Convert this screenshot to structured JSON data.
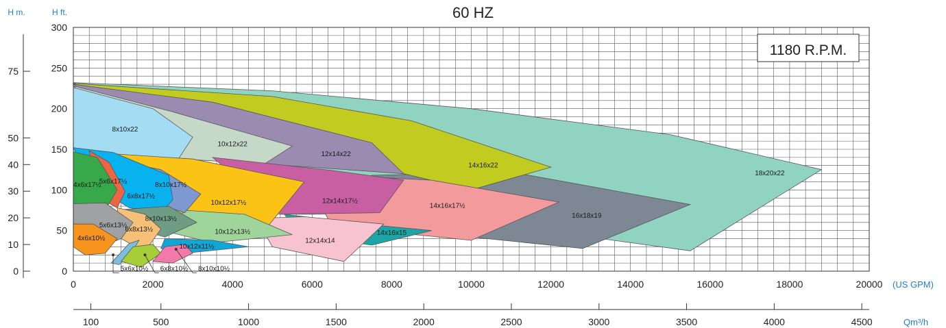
{
  "chart_data": {
    "type": "area",
    "title": "60 HZ",
    "speed_label": "1180 R.P.M.",
    "left_axis_m_label": "H m.",
    "left_axis_ft_label": "H ft.",
    "x_unit_gpm": "(US GPM)",
    "x_unit_m3h": "Qm³/h",
    "xlim_gpm": [
      0,
      20000
    ],
    "ylim_ft": [
      0,
      300
    ],
    "x_ticks_gpm": [
      "0",
      "2000",
      "4000",
      "6000",
      "8000",
      "10000",
      "12000",
      "14000",
      "16000",
      "18000",
      "20000"
    ],
    "y_ticks_ft": [
      "0",
      "50",
      "100",
      "150",
      "200",
      "250",
      "300"
    ],
    "m_ticks": [
      {
        "label": "0",
        "ft": 0
      },
      {
        "label": "10",
        "ft": 32.8
      },
      {
        "label": "20",
        "ft": 65.6
      },
      {
        "label": "30",
        "ft": 98.4
      },
      {
        "label": "40",
        "ft": 131.2
      },
      {
        "label": "50",
        "ft": 164
      },
      {
        "label": "75",
        "ft": 246
      }
    ],
    "m3h_ticks": [
      {
        "label": "100",
        "gpm": 440
      },
      {
        "label": "500",
        "gpm": 2201
      },
      {
        "label": "1000",
        "gpm": 4403
      },
      {
        "label": "1500",
        "gpm": 6604
      },
      {
        "label": "2000",
        "gpm": 8806
      },
      {
        "label": "2500",
        "gpm": 11007
      },
      {
        "label": "3000",
        "gpm": 13209
      },
      {
        "label": "3500",
        "gpm": 15410
      },
      {
        "label": "4000",
        "gpm": 17612
      },
      {
        "label": "4500",
        "gpm": 19813
      }
    ],
    "grid": true,
    "series": [
      {
        "name": "18x20x22",
        "color": "#8fd3c0",
        "lx": 17500,
        "ly": 120,
        "points": [
          [
            0,
            232
          ],
          [
            5000,
            222
          ],
          [
            10000,
            200
          ],
          [
            15000,
            168
          ],
          [
            18800,
            125
          ],
          [
            15500,
            25
          ],
          [
            10000,
            62
          ],
          [
            7000,
            92
          ]
        ]
      },
      {
        "name": "16x18x19",
        "color": "#7d8894",
        "lx": 12900,
        "ly": 68,
        "points": [
          [
            7500,
            118
          ],
          [
            11000,
            122
          ],
          [
            15500,
            82
          ],
          [
            12800,
            28
          ],
          [
            8000,
            52
          ]
        ]
      },
      {
        "name": "14x16x22",
        "color": "#c2cc20",
        "lx": 10300,
        "ly": 130,
        "points": [
          [
            0,
            231
          ],
          [
            5000,
            215
          ],
          [
            8500,
            185
          ],
          [
            12000,
            128
          ],
          [
            10000,
            100
          ],
          [
            8300,
            120
          ],
          [
            4000,
            150
          ]
        ]
      },
      {
        "name": "12x14x22",
        "color": "#9b8bb0",
        "lx": 6600,
        "ly": 144,
        "points": [
          [
            0,
            230
          ],
          [
            3500,
            208
          ],
          [
            7500,
            158
          ],
          [
            8300,
            120
          ],
          [
            4800,
            132
          ],
          [
            2000,
            158
          ]
        ]
      },
      {
        "name": "10x12x22",
        "color": "#c6d8c8",
        "lx": 4000,
        "ly": 156,
        "points": [
          [
            0,
            228
          ],
          [
            2500,
            196
          ],
          [
            5500,
            154
          ],
          [
            4800,
            132
          ],
          [
            2700,
            138
          ],
          [
            1500,
            156
          ]
        ]
      },
      {
        "name": "8x10x22",
        "color": "#a4dcf3",
        "lx": 1300,
        "ly": 174,
        "points": [
          [
            0,
            226
          ],
          [
            2000,
            200
          ],
          [
            3000,
            165
          ],
          [
            2600,
            135
          ],
          [
            1200,
            128
          ],
          [
            0,
            130
          ]
        ]
      },
      {
        "name": "14x16x17½",
        "color": "#f39a9c",
        "lx": 9400,
        "ly": 80,
        "points": [
          [
            5800,
            120
          ],
          [
            9000,
            112
          ],
          [
            12200,
            85
          ],
          [
            10000,
            38
          ],
          [
            6500,
            55
          ]
        ]
      },
      {
        "name": "12x14x17½",
        "color": "#c85fa2",
        "lx": 6700,
        "ly": 86,
        "points": [
          [
            3500,
            140
          ],
          [
            6500,
            124
          ],
          [
            8300,
            112
          ],
          [
            7700,
            72
          ],
          [
            5200,
            70
          ]
        ]
      },
      {
        "name": "14x16x15",
        "color": "#1aa5a7",
        "lx": 8000,
        "ly": 47,
        "points": [
          [
            5300,
            70
          ],
          [
            7700,
            56
          ],
          [
            9000,
            50
          ],
          [
            7500,
            32
          ],
          [
            5700,
            45
          ]
        ]
      },
      {
        "name": "12x14x14",
        "color": "#f7c3d0",
        "lx": 6200,
        "ly": 37,
        "points": [
          [
            4600,
            65
          ],
          [
            5800,
            67
          ],
          [
            7800,
            58
          ],
          [
            7300,
            35
          ],
          [
            6800,
            12
          ],
          [
            5000,
            30
          ]
        ]
      },
      {
        "name": "10x12x17½",
        "color": "#fbc315",
        "lx": 3900,
        "ly": 84,
        "points": [
          [
            800,
            145
          ],
          [
            3000,
            138
          ],
          [
            5800,
            110
          ],
          [
            4800,
            50
          ],
          [
            3500,
            35
          ],
          [
            2500,
            60
          ]
        ]
      },
      {
        "name": "10x12x13½",
        "color": "#9fd59a",
        "lx": 4000,
        "ly": 48,
        "points": [
          [
            2800,
            75
          ],
          [
            4300,
            70
          ],
          [
            5500,
            45
          ],
          [
            3500,
            35
          ],
          [
            2400,
            48
          ]
        ]
      },
      {
        "name": "10x12x11½",
        "color": "#10a7d7",
        "lx": 3100,
        "ly": 30,
        "points": [
          [
            2300,
            40
          ],
          [
            3500,
            38
          ],
          [
            4400,
            30
          ],
          [
            2800,
            22
          ],
          [
            2200,
            28
          ]
        ]
      },
      {
        "name": "8x10x17½",
        "color": "#7e98d2",
        "lx": 2450,
        "ly": 106,
        "points": [
          [
            1200,
            135
          ],
          [
            2200,
            125
          ],
          [
            3200,
            95
          ],
          [
            2800,
            72
          ],
          [
            1800,
            88
          ]
        ]
      },
      {
        "name": "6x8x17½",
        "color": "#08b2ef",
        "lx": 1700,
        "ly": 92,
        "points": [
          [
            0,
            152
          ],
          [
            1000,
            146
          ],
          [
            2400,
            118
          ],
          [
            2500,
            88
          ],
          [
            2200,
            72
          ],
          [
            1400,
            78
          ],
          [
            500,
            105
          ]
        ]
      },
      {
        "name": "8x10x13½",
        "color": "#6e9c84",
        "lx": 2200,
        "ly": 64,
        "points": [
          [
            1300,
            76
          ],
          [
            2400,
            80
          ],
          [
            3100,
            60
          ],
          [
            2300,
            42
          ],
          [
            1600,
            52
          ]
        ]
      },
      {
        "name": "6x8x13½",
        "color": "#f7c079",
        "lx": 1650,
        "ly": 51,
        "points": [
          [
            1100,
            78
          ],
          [
            1800,
            70
          ],
          [
            2200,
            52
          ],
          [
            1800,
            24
          ],
          [
            1200,
            40
          ]
        ]
      },
      {
        "name": "5x6x17½",
        "color": "#ee6544",
        "lx": 1000,
        "ly": 110,
        "points": [
          [
            400,
            148
          ],
          [
            900,
            134
          ],
          [
            1300,
            98
          ],
          [
            1100,
            78
          ],
          [
            600,
            92
          ]
        ]
      },
      {
        "name": "4x6x17½",
        "color": "#37a94a",
        "lx": 350,
        "ly": 106,
        "points": [
          [
            0,
            147
          ],
          [
            600,
            140
          ],
          [
            1100,
            100
          ],
          [
            800,
            75
          ],
          [
            400,
            72
          ],
          [
            0,
            78
          ]
        ]
      },
      {
        "name": "5x6x13½",
        "color": "#a0a1a3",
        "lx": 1000,
        "ly": 56,
        "points": [
          [
            0,
            83
          ],
          [
            800,
            84
          ],
          [
            1500,
            60
          ],
          [
            1200,
            40
          ],
          [
            700,
            30
          ],
          [
            0,
            35
          ]
        ]
      },
      {
        "name": "4x6x10½",
        "color": "#f7941e",
        "lx": 450,
        "ly": 40,
        "points": [
          [
            0,
            58
          ],
          [
            500,
            58
          ],
          [
            1100,
            40
          ],
          [
            800,
            22
          ],
          [
            300,
            20
          ],
          [
            0,
            30
          ]
        ]
      },
      {
        "name": "5x6x10½",
        "color": "#7bbfe0",
        "lx": 0,
        "ly": 0,
        "points": [
          [
            1400,
            34
          ],
          [
            1650,
            38
          ],
          [
            1450,
            22
          ],
          [
            1150,
            8
          ],
          [
            950,
            10
          ]
        ]
      },
      {
        "name": "6x8x10½",
        "color": "#a6ce39",
        "lx": 0,
        "ly": 0,
        "points": [
          [
            1500,
            30
          ],
          [
            2000,
            33
          ],
          [
            2200,
            22
          ],
          [
            1700,
            5
          ],
          [
            1200,
            12
          ]
        ]
      },
      {
        "name": "8x10x10½",
        "color": "#f27aa8",
        "lx": 0,
        "ly": 0,
        "points": [
          [
            2300,
            30
          ],
          [
            2800,
            33
          ],
          [
            3000,
            22
          ],
          [
            2500,
            10
          ],
          [
            2000,
            12
          ]
        ]
      }
    ],
    "callouts": [
      {
        "name": "5x6x10½",
        "ax": 1000,
        "ay": 20,
        "bx": 1000,
        "by": -2,
        "lx": 1150
      },
      {
        "name": "6x8x10½",
        "ax": 1800,
        "ay": 20,
        "bx": 2050,
        "by": -2,
        "lx": 2150
      },
      {
        "name": "8x10x10½",
        "ax": 2580,
        "ay": 27,
        "bx": 3000,
        "by": -2,
        "lx": 3100
      }
    ]
  }
}
